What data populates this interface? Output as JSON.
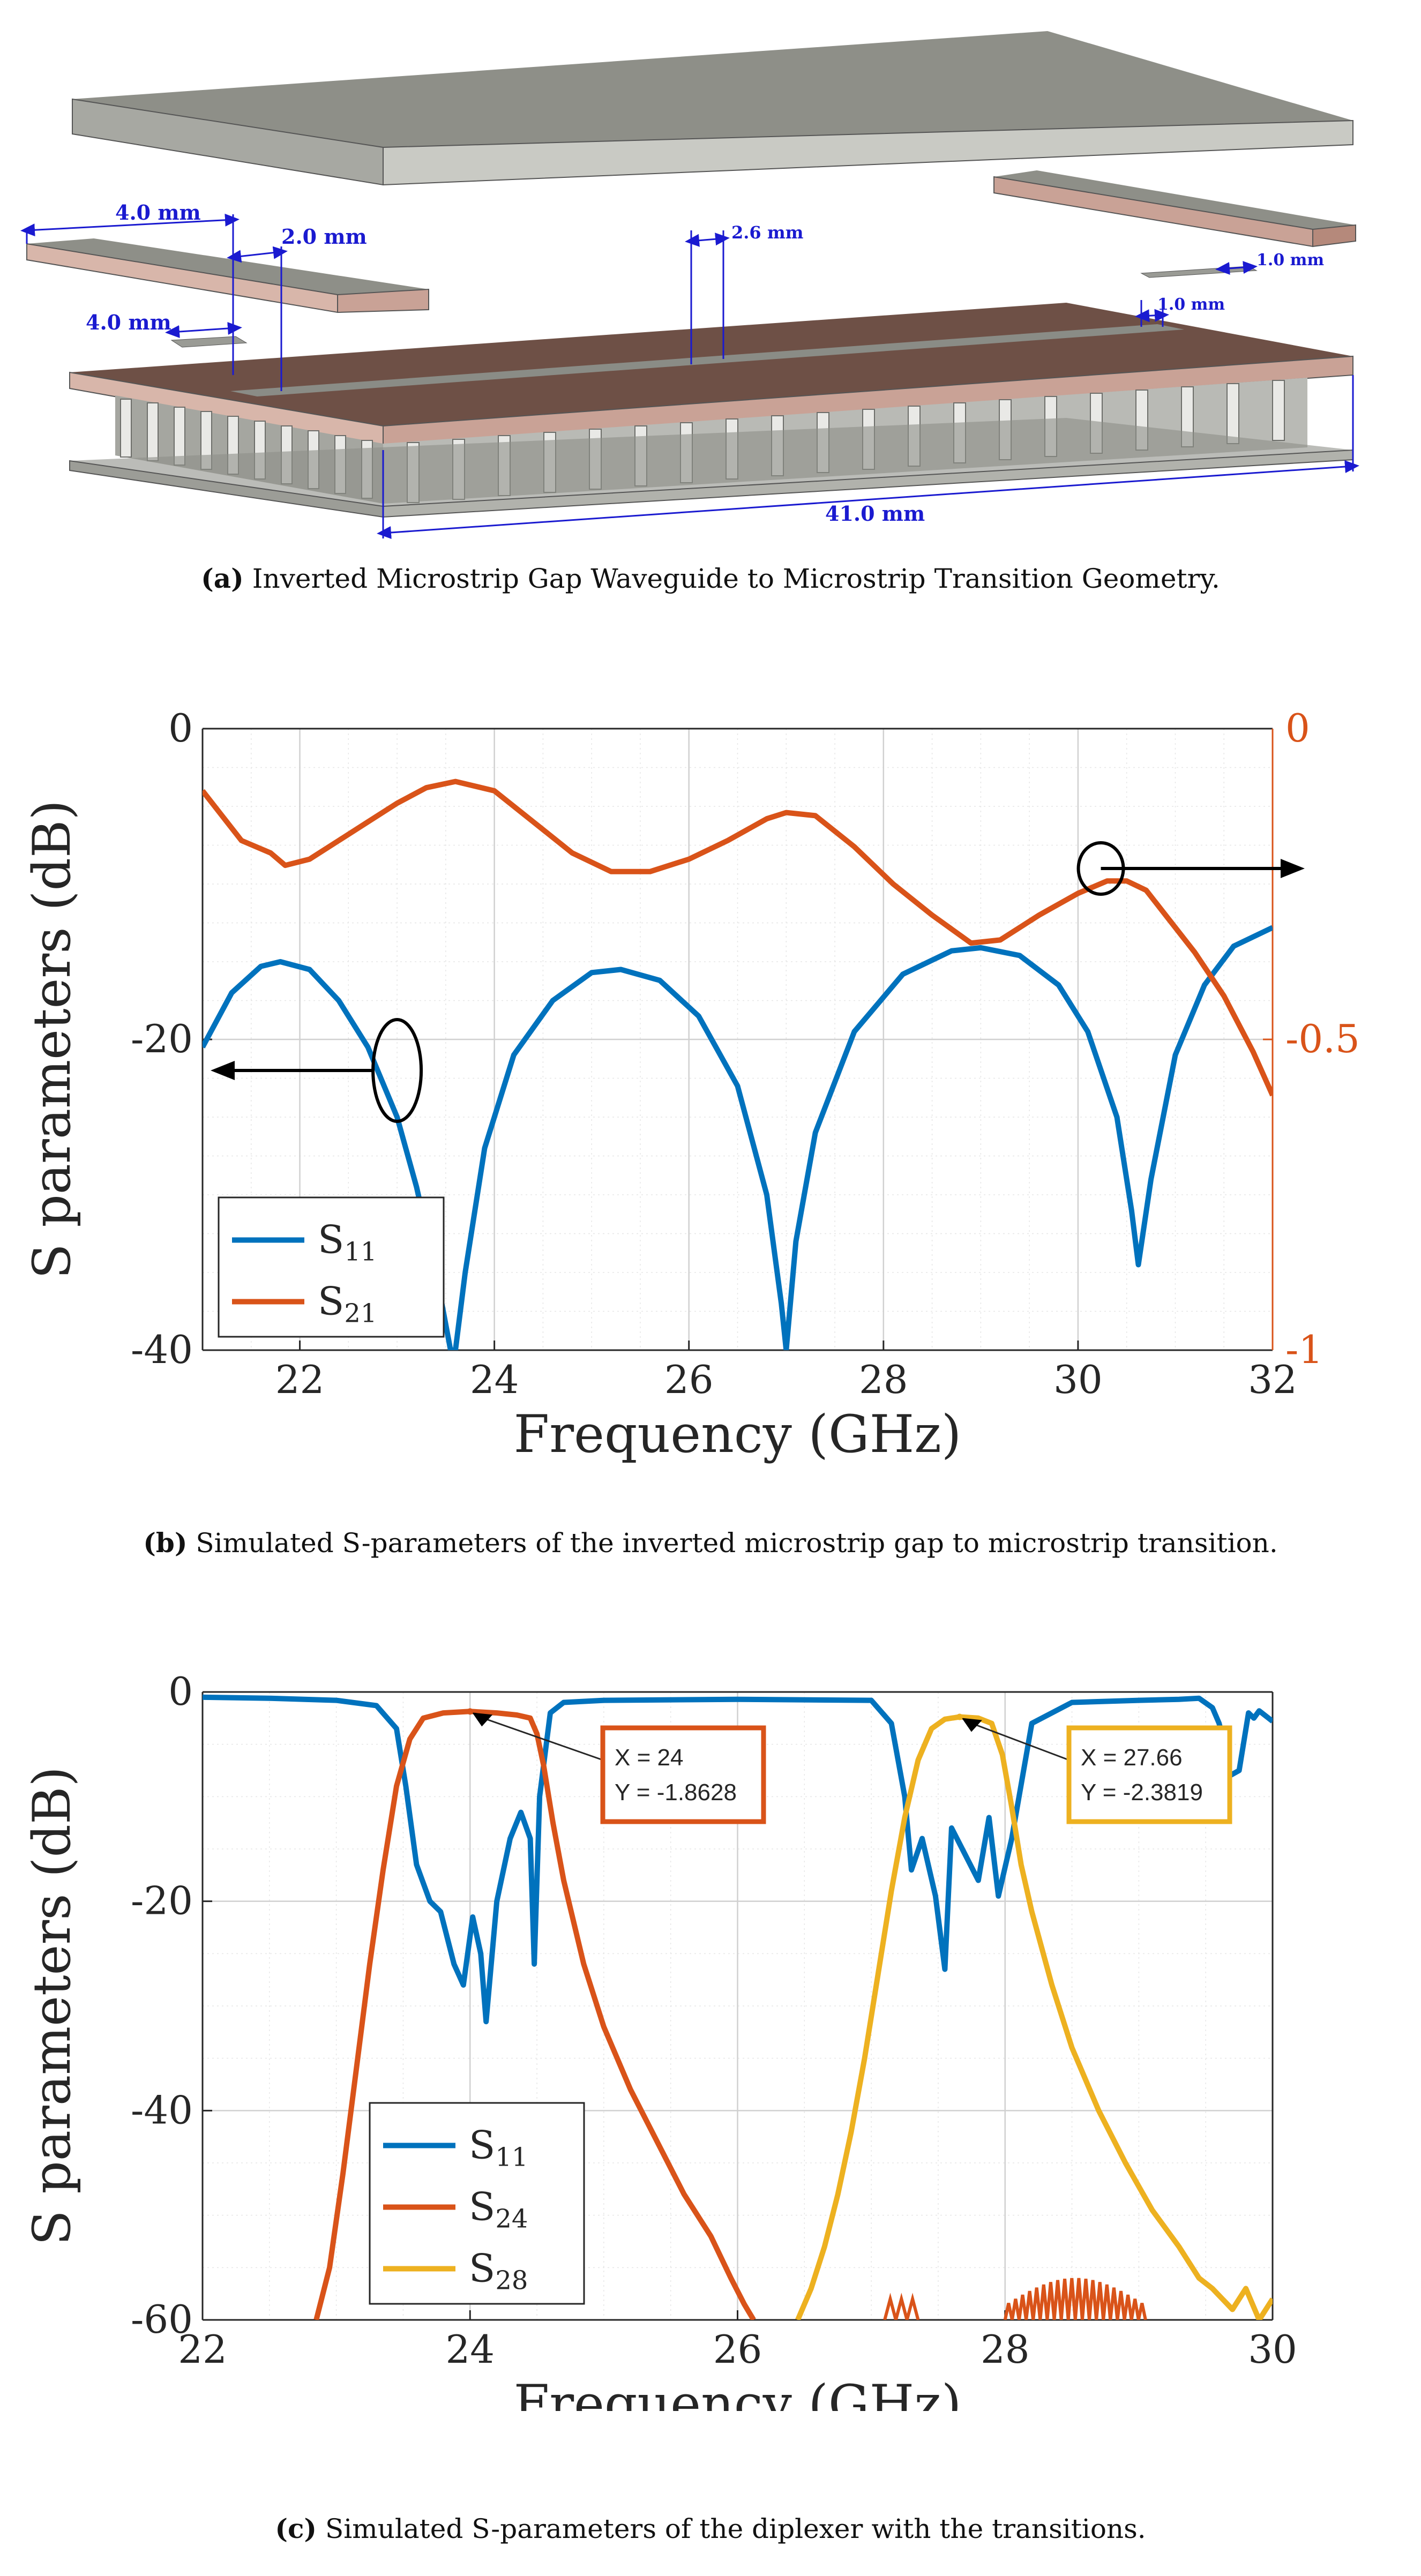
{
  "colors": {
    "blue": "#0072BD",
    "orange": "#D95319",
    "yellow": "#EDB120",
    "dim": "#1a1ad0",
    "plate_top": "#8e8f88",
    "plate_side": "#c9cac4",
    "substrate": "#c9a296",
    "board": "#6e5046",
    "pins": "#b9bab5"
  },
  "figure_a": {
    "dims": [
      "4.0 mm",
      "2.0 mm",
      "4.0 mm",
      "2.6 mm",
      "1.0 mm",
      "1.0 mm",
      "41.0 mm"
    ],
    "caption_label": "(a)",
    "caption_text": "Inverted Microstrip Gap Waveguide to Microstrip Transition Geometry."
  },
  "figure_b": {
    "caption_label": "(b)",
    "caption_text": "Simulated S-parameters of the inverted microstrip gap to microstrip transition."
  },
  "figure_c": {
    "caption_label": "(c)",
    "caption_text": "Simulated S-parameters of the diplexer with the transitions."
  },
  "chart_data": [
    {
      "type": "line",
      "xlabel": "Frequency (GHz)",
      "ylabel": "S parameters (dB)",
      "xlim": [
        21,
        32
      ],
      "ylim": [
        -40,
        0
      ],
      "y2lim": [
        -1,
        0
      ],
      "xticks": [
        "22",
        "24",
        "26",
        "28",
        "30",
        "32"
      ],
      "yticks": [
        "0",
        "-20",
        "-40"
      ],
      "y2ticks": [
        "0",
        "-0.5",
        "-1"
      ],
      "grid": true,
      "legend_position": "bottom-left",
      "series": [
        {
          "name": "S",
          "sub": "11",
          "axis": "left",
          "color": "#0072BD",
          "x": [
            21.0,
            21.3,
            21.6,
            21.8,
            22.1,
            22.4,
            22.7,
            23.0,
            23.2,
            23.4,
            23.55,
            23.6,
            23.7,
            23.9,
            24.2,
            24.6,
            25.0,
            25.3,
            25.7,
            26.1,
            26.5,
            26.8,
            26.95,
            27.0,
            27.1,
            27.3,
            27.7,
            28.2,
            28.7,
            29.0,
            29.4,
            29.8,
            30.1,
            30.4,
            30.55,
            30.62,
            30.75,
            31.0,
            31.3,
            31.6,
            32.0
          ],
          "y": [
            -20.5,
            -17.0,
            -15.3,
            -15.0,
            -15.5,
            -17.5,
            -20.5,
            -25.0,
            -29.5,
            -35.0,
            -40.0,
            -40.0,
            -35.0,
            -27.0,
            -21.0,
            -17.5,
            -15.7,
            -15.5,
            -16.2,
            -18.5,
            -23.0,
            -30.0,
            -37.0,
            -40.0,
            -33.0,
            -26.0,
            -19.5,
            -15.8,
            -14.3,
            -14.1,
            -14.6,
            -16.5,
            -19.5,
            -25.0,
            -31.0,
            -34.5,
            -29.0,
            -21.0,
            -16.5,
            -14.0,
            -12.8
          ]
        },
        {
          "name": "S",
          "sub": "21",
          "axis": "right",
          "color": "#D95319",
          "x": [
            21.0,
            21.2,
            21.4,
            21.7,
            21.85,
            22.1,
            22.4,
            22.7,
            23.0,
            23.3,
            23.6,
            24.0,
            24.4,
            24.8,
            25.2,
            25.6,
            26.0,
            26.4,
            26.8,
            27.0,
            27.3,
            27.7,
            28.1,
            28.5,
            28.9,
            29.2,
            29.6,
            30.0,
            30.3,
            30.5,
            30.7,
            30.9,
            31.2,
            31.5,
            31.8,
            32.0
          ],
          "y": [
            -0.1,
            -0.14,
            -0.18,
            -0.2,
            -0.22,
            -0.21,
            -0.18,
            -0.15,
            -0.12,
            -0.095,
            -0.085,
            -0.1,
            -0.15,
            -0.2,
            -0.23,
            -0.23,
            -0.21,
            -0.18,
            -0.145,
            -0.135,
            -0.14,
            -0.19,
            -0.25,
            -0.3,
            -0.345,
            -0.34,
            -0.3,
            -0.265,
            -0.245,
            -0.245,
            -0.26,
            -0.3,
            -0.36,
            -0.43,
            -0.52,
            -0.59
          ]
        }
      ],
      "annotations": [
        {
          "type": "ellipse-arrow",
          "ellipse_at": [
            23.0,
            -22
          ],
          "points_to": "left-axis"
        },
        {
          "type": "ellipse-arrow",
          "ellipse_at": [
            30.4,
            -9
          ],
          "points_to": "right-axis"
        }
      ]
    },
    {
      "type": "line",
      "xlabel": "Frequency (GHz)",
      "ylabel": "S parameters (dB)",
      "xlim": [
        22,
        30
      ],
      "ylim": [
        -60,
        0
      ],
      "xticks": [
        "22",
        "24",
        "26",
        "28",
        "30"
      ],
      "yticks": [
        "0",
        "-20",
        "-40",
        "-60"
      ],
      "grid": true,
      "legend_position": "bottom-left",
      "series": [
        {
          "name": "S",
          "sub": "11",
          "color": "#0072BD",
          "x": [
            22.0,
            22.5,
            23.0,
            23.3,
            23.45,
            23.52,
            23.6,
            23.7,
            23.78,
            23.88,
            23.95,
            24.02,
            24.08,
            24.12,
            24.2,
            24.3,
            24.38,
            24.45,
            24.48,
            24.52,
            24.6,
            24.7,
            25.0,
            26.0,
            27.0,
            27.15,
            27.25,
            27.3,
            27.38,
            27.48,
            27.55,
            27.6,
            27.7,
            27.8,
            27.88,
            27.95,
            28.05,
            28.2,
            28.5,
            29.0,
            29.3,
            29.45,
            29.55,
            29.6,
            29.65,
            29.68,
            29.75,
            29.82,
            29.86,
            29.9,
            30.0
          ],
          "y": [
            -0.5,
            -0.6,
            -0.8,
            -1.3,
            -3.5,
            -9.0,
            -16.5,
            -20.0,
            -21.0,
            -26.0,
            -28.0,
            -21.5,
            -25.0,
            -31.5,
            -20.0,
            -14.0,
            -11.5,
            -14.0,
            -26.0,
            -10.0,
            -2.0,
            -1.0,
            -0.8,
            -0.7,
            -0.8,
            -3.0,
            -10.0,
            -17.0,
            -14.0,
            -19.5,
            -26.5,
            -13.0,
            -15.5,
            -18.0,
            -12.0,
            -19.5,
            -14.0,
            -3.0,
            -1.0,
            -0.8,
            -0.7,
            -0.6,
            -1.5,
            -3.0,
            -5.5,
            -8.0,
            -7.5,
            -2.0,
            -2.5,
            -1.8,
            -2.8
          ]
        },
        {
          "name": "S",
          "sub": "24",
          "color": "#D95319",
          "x": [
            22.85,
            22.95,
            23.05,
            23.15,
            23.25,
            23.35,
            23.45,
            23.55,
            23.65,
            23.8,
            24.0,
            24.2,
            24.35,
            24.45,
            24.5,
            24.55,
            24.62,
            24.7,
            24.85,
            25.0,
            25.2,
            25.4,
            25.6,
            25.8,
            25.95,
            26.05,
            26.12
          ],
          "y": [
            -60,
            -55,
            -46,
            -36,
            -26,
            -17,
            -9,
            -4.5,
            -2.5,
            -2.0,
            -1.86,
            -2.0,
            -2.2,
            -2.5,
            -4.0,
            -7.0,
            -12.5,
            -18.0,
            -26.0,
            -32.0,
            -38.0,
            -43.0,
            -48.0,
            -52.0,
            -56.0,
            -58.5,
            -60
          ]
        },
        {
          "name": "S",
          "sub": "28",
          "color": "#EDB120",
          "x": [
            26.45,
            26.55,
            26.65,
            26.75,
            26.85,
            26.95,
            27.05,
            27.15,
            27.25,
            27.35,
            27.45,
            27.55,
            27.66,
            27.8,
            27.9,
            27.98,
            28.05,
            28.12,
            28.2,
            28.35,
            28.5,
            28.7,
            28.9,
            29.1,
            29.3,
            29.45,
            29.55,
            29.7,
            29.8,
            29.9,
            30.0
          ],
          "y": [
            -60,
            -57,
            -53,
            -48,
            -42,
            -35,
            -27,
            -19,
            -12,
            -6.5,
            -3.5,
            -2.6,
            -2.38,
            -2.5,
            -3.0,
            -6.0,
            -11.0,
            -16.5,
            -21.0,
            -28.0,
            -34.0,
            -40.0,
            -45.0,
            -49.5,
            -53.0,
            -56.0,
            -57.0,
            -59.0,
            -57.0,
            -60.0,
            -58.0
          ]
        }
      ],
      "s24_floor_ripple": {
        "x_start": 28.0,
        "x_end": 29.05,
        "y_floor": -60,
        "y_peak": -56
      },
      "s24_floor_blip": {
        "x_start": 27.1,
        "x_end": 27.35,
        "y_peak": -58
      },
      "datatips": [
        {
          "anchor_x": 24.0,
          "anchor_y": -1.8628,
          "line1": "X = 24",
          "line2": "Y = -1.8628",
          "color": "#D95319"
        },
        {
          "anchor_x": 27.66,
          "anchor_y": -2.3819,
          "line1": "X = 27.66",
          "line2": "Y = -2.3819",
          "color": "#EDB120"
        }
      ]
    }
  ]
}
